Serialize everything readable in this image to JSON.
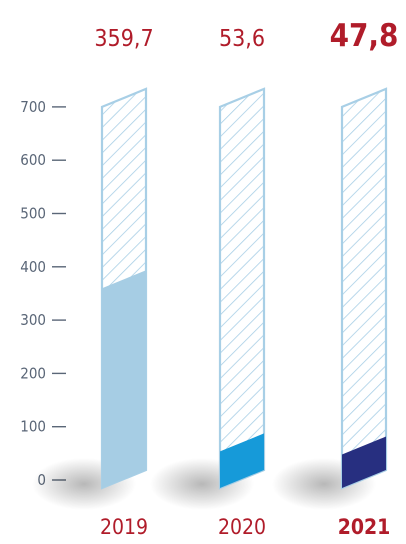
{
  "chart_data": {
    "type": "bar",
    "categories": [
      "2019",
      "2020",
      "2021"
    ],
    "values": [
      359.7,
      53.6,
      47.8
    ],
    "value_labels": [
      "359,7",
      "53,6",
      "47,8"
    ],
    "y_ticks": [
      "0",
      "100",
      "200",
      "300",
      "400",
      "500",
      "600",
      "700"
    ],
    "ylim": [
      0,
      700
    ],
    "highlight_category": "2021",
    "grid": false,
    "legend": "none",
    "colors": {
      "label_red": "#b01c2a",
      "axis_grey": "#5a6677",
      "outline": "#a8cfe6",
      "hatch": "#a8cfe6",
      "bar_fills": [
        "#a6cde4",
        "#169ad9",
        "#272f80"
      ]
    }
  }
}
